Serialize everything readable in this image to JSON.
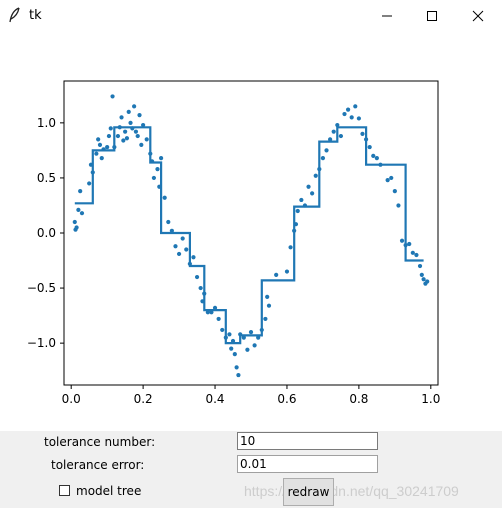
{
  "window": {
    "title": "tk",
    "icons": [
      "feather-icon",
      "minimize-icon",
      "maximize-icon",
      "close-icon"
    ]
  },
  "controls": {
    "tolerance_number_label": "tolerance number:",
    "tolerance_number_value": "10",
    "tolerance_error_label": "tolerance error:",
    "tolerance_error_value": "0.01",
    "model_tree_label": "model tree",
    "model_tree_checked": false,
    "redraw_label": "redraw",
    "watermark": "https://blog.csdn.net/qq_30241709"
  },
  "chart_data": {
    "type": "line+scatter",
    "color": "#1f77b4",
    "xlim": [
      -0.02,
      1.02
    ],
    "ylim": [
      -1.38,
      1.38
    ],
    "xticks": [
      0.0,
      0.2,
      0.4,
      0.6,
      0.8,
      1.0
    ],
    "xtick_labels": [
      "0.0",
      "0.2",
      "0.4",
      "0.6",
      "0.8",
      "1.0"
    ],
    "yticks": [
      -1.0,
      -0.5,
      0.0,
      0.5,
      1.0
    ],
    "ytick_labels": [
      "−1.0",
      "−0.5",
      "0.0",
      "0.5",
      "1.0"
    ],
    "step_line": [
      [
        0.01,
        0.27
      ],
      [
        0.06,
        0.27
      ],
      [
        0.06,
        0.75
      ],
      [
        0.12,
        0.75
      ],
      [
        0.12,
        0.96
      ],
      [
        0.22,
        0.96
      ],
      [
        0.22,
        0.64
      ],
      [
        0.25,
        0.64
      ],
      [
        0.25,
        0.0
      ],
      [
        0.33,
        0.0
      ],
      [
        0.33,
        -0.3
      ],
      [
        0.37,
        -0.3
      ],
      [
        0.37,
        -0.7
      ],
      [
        0.43,
        -0.7
      ],
      [
        0.43,
        -1.0
      ],
      [
        0.47,
        -1.0
      ],
      [
        0.47,
        -0.93
      ],
      [
        0.53,
        -0.93
      ],
      [
        0.53,
        -0.43
      ],
      [
        0.62,
        -0.43
      ],
      [
        0.62,
        0.24
      ],
      [
        0.69,
        0.24
      ],
      [
        0.69,
        0.83
      ],
      [
        0.74,
        0.83
      ],
      [
        0.74,
        0.96
      ],
      [
        0.82,
        0.96
      ],
      [
        0.82,
        0.62
      ],
      [
        0.93,
        0.62
      ],
      [
        0.93,
        -0.25
      ],
      [
        0.98,
        -0.25
      ]
    ],
    "points": [
      [
        0.01,
        0.1
      ],
      [
        0.012,
        0.03
      ],
      [
        0.015,
        0.05
      ],
      [
        0.02,
        0.21
      ],
      [
        0.025,
        0.38
      ],
      [
        0.03,
        0.18
      ],
      [
        0.05,
        0.45
      ],
      [
        0.055,
        0.62
      ],
      [
        0.06,
        0.55
      ],
      [
        0.07,
        0.72
      ],
      [
        0.075,
        0.85
      ],
      [
        0.08,
        0.8
      ],
      [
        0.085,
        0.68
      ],
      [
        0.09,
        0.76
      ],
      [
        0.1,
        0.78
      ],
      [
        0.105,
        0.88
      ],
      [
        0.11,
        0.95
      ],
      [
        0.115,
        1.24
      ],
      [
        0.12,
        0.78
      ],
      [
        0.13,
        0.88
      ],
      [
        0.135,
        0.96
      ],
      [
        0.14,
        1.05
      ],
      [
        0.145,
        0.84
      ],
      [
        0.15,
        0.92
      ],
      [
        0.155,
        0.86
      ],
      [
        0.16,
        1.1
      ],
      [
        0.165,
        1.0
      ],
      [
        0.17,
        0.95
      ],
      [
        0.175,
        1.15
      ],
      [
        0.18,
        0.92
      ],
      [
        0.185,
        0.88
      ],
      [
        0.19,
        1.07
      ],
      [
        0.195,
        0.8
      ],
      [
        0.2,
        0.98
      ],
      [
        0.21,
        0.85
      ],
      [
        0.22,
        0.72
      ],
      [
        0.225,
        0.65
      ],
      [
        0.23,
        0.5
      ],
      [
        0.24,
        0.58
      ],
      [
        0.245,
        0.42
      ],
      [
        0.25,
        0.68
      ],
      [
        0.26,
        0.32
      ],
      [
        0.27,
        0.1
      ],
      [
        0.28,
        0.02
      ],
      [
        0.29,
        -0.12
      ],
      [
        0.3,
        -0.19
      ],
      [
        0.31,
        -0.05
      ],
      [
        0.32,
        -0.15
      ],
      [
        0.33,
        -0.28
      ],
      [
        0.34,
        -0.22
      ],
      [
        0.35,
        -0.4
      ],
      [
        0.36,
        -0.5
      ],
      [
        0.365,
        -0.62
      ],
      [
        0.37,
        -0.55
      ],
      [
        0.38,
        -0.72
      ],
      [
        0.39,
        -0.72
      ],
      [
        0.4,
        -0.68
      ],
      [
        0.41,
        -0.78
      ],
      [
        0.42,
        -0.88
      ],
      [
        0.43,
        -0.95
      ],
      [
        0.44,
        -0.92
      ],
      [
        0.445,
        -1.05
      ],
      [
        0.45,
        -0.98
      ],
      [
        0.455,
        -1.1
      ],
      [
        0.46,
        -1.22
      ],
      [
        0.465,
        -1.29
      ],
      [
        0.47,
        -0.92
      ],
      [
        0.48,
        -0.95
      ],
      [
        0.49,
        -1.06
      ],
      [
        0.5,
        -0.9
      ],
      [
        0.51,
        -1.02
      ],
      [
        0.52,
        -0.95
      ],
      [
        0.53,
        -0.88
      ],
      [
        0.54,
        -0.78
      ],
      [
        0.545,
        -0.58
      ],
      [
        0.55,
        -0.66
      ],
      [
        0.57,
        -0.38
      ],
      [
        0.6,
        -0.35
      ],
      [
        0.61,
        -0.13
      ],
      [
        0.62,
        0.02
      ],
      [
        0.625,
        0.08
      ],
      [
        0.63,
        0.2
      ],
      [
        0.64,
        0.3
      ],
      [
        0.65,
        0.25
      ],
      [
        0.66,
        0.42
      ],
      [
        0.67,
        0.36
      ],
      [
        0.68,
        0.52
      ],
      [
        0.69,
        0.58
      ],
      [
        0.7,
        0.68
      ],
      [
        0.71,
        0.75
      ],
      [
        0.72,
        0.85
      ],
      [
        0.73,
        0.92
      ],
      [
        0.74,
        0.98
      ],
      [
        0.75,
        0.88
      ],
      [
        0.76,
        1.08
      ],
      [
        0.77,
        1.12
      ],
      [
        0.78,
        1.05
      ],
      [
        0.79,
        1.15
      ],
      [
        0.8,
        1.04
      ],
      [
        0.81,
        0.9
      ],
      [
        0.82,
        0.85
      ],
      [
        0.83,
        0.78
      ],
      [
        0.84,
        0.7
      ],
      [
        0.85,
        0.68
      ],
      [
        0.86,
        0.62
      ],
      [
        0.88,
        0.48
      ],
      [
        0.89,
        0.5
      ],
      [
        0.9,
        0.38
      ],
      [
        0.91,
        0.25
      ],
      [
        0.92,
        -0.07
      ],
      [
        0.93,
        -0.11
      ],
      [
        0.94,
        -0.1
      ],
      [
        0.95,
        -0.18
      ],
      [
        0.96,
        -0.2
      ],
      [
        0.97,
        -0.3
      ],
      [
        0.975,
        -0.38
      ],
      [
        0.98,
        -0.42
      ],
      [
        0.985,
        -0.46
      ],
      [
        0.99,
        -0.44
      ]
    ]
  }
}
